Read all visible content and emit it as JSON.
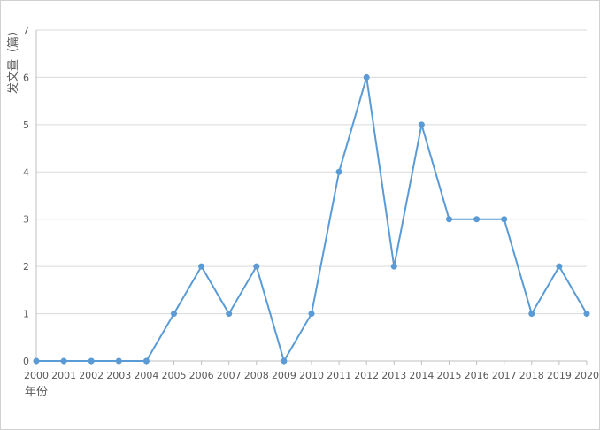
{
  "chart_data": {
    "type": "line",
    "xlabel": "年份",
    "ylabel": "发文量（篇）",
    "ylim": [
      0,
      7
    ],
    "grid": true,
    "color": "#5b9bd5",
    "x": [
      "2000",
      "2001",
      "2002",
      "2003",
      "2004",
      "2005",
      "2006",
      "2007",
      "2008",
      "2009",
      "2010",
      "2011",
      "2012",
      "2013",
      "2014",
      "2015",
      "2016",
      "2017",
      "2018",
      "2019",
      "2020"
    ],
    "yticks": [
      "0",
      "1",
      "2",
      "3",
      "4",
      "5",
      "6",
      "7"
    ],
    "values": [
      0,
      0,
      0,
      0,
      0,
      1,
      2,
      1,
      2,
      0,
      1,
      4,
      6,
      2,
      5,
      3,
      3,
      3,
      1,
      2,
      1
    ]
  }
}
